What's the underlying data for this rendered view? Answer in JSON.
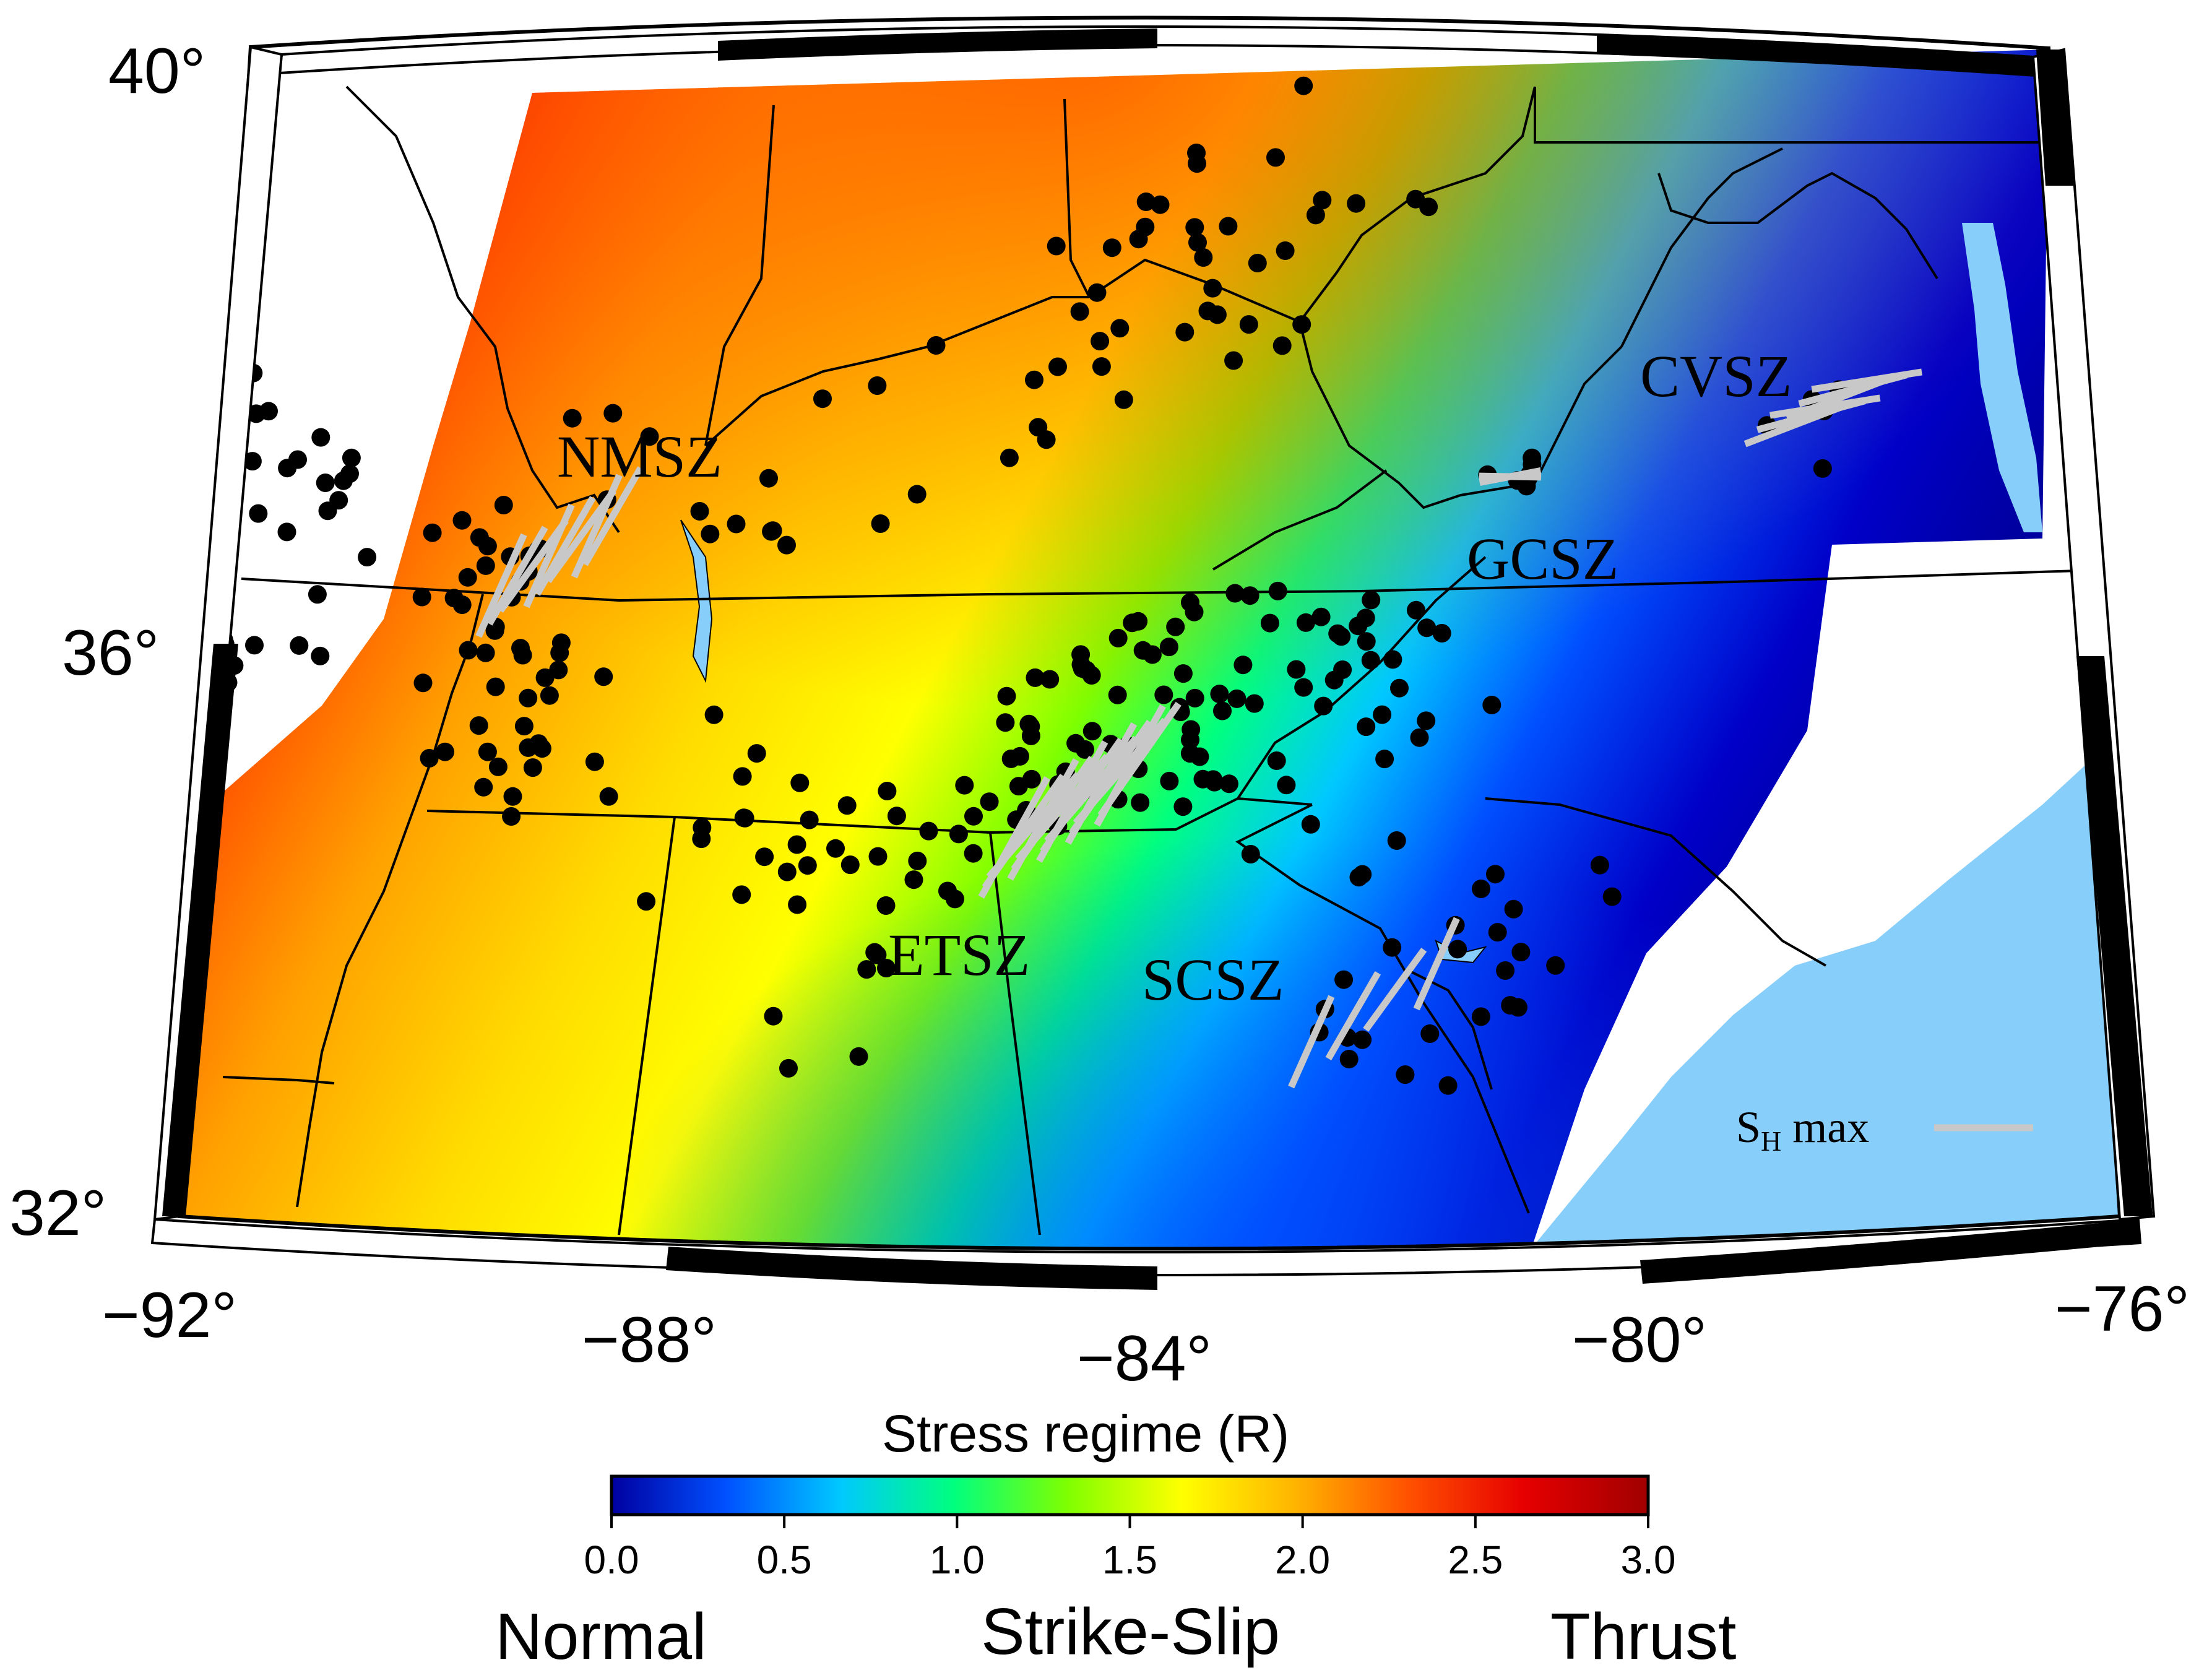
{
  "map": {
    "lon_ticks": [
      "−92°",
      "−88°",
      "−84°",
      "−80°",
      "−76°"
    ],
    "lat_ticks": [
      "40°",
      "36°",
      "32°"
    ],
    "extent": {
      "lon": [
        -92,
        -76
      ],
      "lat": [
        32,
        40
      ]
    }
  },
  "zones": [
    {
      "label": "NMSZ"
    },
    {
      "label": "ETSZ"
    },
    {
      "label": "SCSZ"
    },
    {
      "label": "GCSZ"
    },
    {
      "label": "CVSZ"
    }
  ],
  "legend": {
    "sh_label": "S",
    "sh_sub": "H",
    "sh_rest": " max",
    "line_color": "#c8c8c8"
  },
  "colorbar": {
    "title": "Stress regime (R)",
    "ticks": [
      "0.0",
      "0.5",
      "1.0",
      "1.5",
      "2.0",
      "2.5",
      "3.0"
    ],
    "range": [
      0,
      3
    ],
    "stops": [
      "#0000a0",
      "#0050ff",
      "#00c8ff",
      "#00ff7f",
      "#7fff00",
      "#ffff00",
      "#ffb400",
      "#ff5000",
      "#e60000",
      "#a00000"
    ]
  },
  "regimes": {
    "normal": "Normal",
    "strike_slip": "Strike-Slip",
    "thrust": "Thrust"
  },
  "colors": {
    "ocean": "#87cefa",
    "earthquake": "#000000",
    "stress_line": "#c8c8c8"
  }
}
